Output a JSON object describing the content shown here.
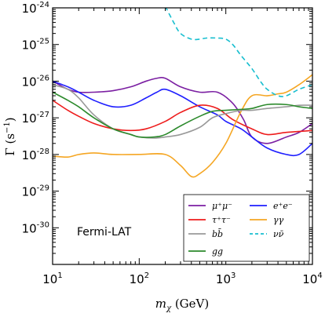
{
  "chart_data": {
    "type": "line",
    "xlabel": "m_χ (GeV)",
    "ylabel": "Γ (s⁻¹)",
    "xscale": "log",
    "yscale": "log",
    "xlim": [
      10,
      10000
    ],
    "ylim": [
      1e-31,
      1e-24
    ],
    "x_ticks": [
      {
        "value": 10,
        "base": "10",
        "exp": "1"
      },
      {
        "value": 100,
        "base": "10",
        "exp": "2"
      },
      {
        "value": 1000,
        "base": "10",
        "exp": "3"
      },
      {
        "value": 10000,
        "base": "10",
        "exp": "4"
      }
    ],
    "y_ticks": [
      {
        "value": 1e-30,
        "base": "10",
        "exp": "-30"
      },
      {
        "value": 1e-29,
        "base": "10",
        "exp": "-29"
      },
      {
        "value": 1e-28,
        "base": "10",
        "exp": "-28"
      },
      {
        "value": 1e-27,
        "base": "10",
        "exp": "-27"
      },
      {
        "value": 1e-26,
        "base": "10",
        "exp": "-26"
      },
      {
        "value": 1e-25,
        "base": "10",
        "exp": "-25"
      },
      {
        "value": 1e-24,
        "base": "10",
        "exp": "-24"
      }
    ],
    "annotation": "Fermi-LAT",
    "legend_position": "lower-right",
    "series": [
      {
        "name": "μ⁺μ⁻",
        "color": "#7b1fa2",
        "dash": "",
        "x": [
          10,
          15,
          20,
          30,
          50,
          80,
          120,
          160,
          200,
          300,
          500,
          800,
          1200,
          1600,
          2000,
          3000,
          5000,
          7000,
          10000
        ],
        "y": [
          1e-26,
          6e-27,
          5e-27,
          5e-27,
          5.5e-27,
          7e-27,
          1e-26,
          1.2e-26,
          1.2e-26,
          7e-27,
          5e-27,
          5e-27,
          2.5e-27,
          9e-28,
          3e-28,
          2e-28,
          3e-28,
          4e-28,
          7e-28
        ]
      },
      {
        "name": "e⁺e⁻",
        "color": "#1f1fff",
        "dash": "",
        "x": [
          10,
          15,
          20,
          30,
          50,
          80,
          120,
          160,
          200,
          300,
          500,
          800,
          1000,
          1500,
          2000,
          3000,
          5000,
          7000,
          10000
        ],
        "y": [
          1e-26,
          7e-27,
          5e-27,
          3e-27,
          2e-27,
          2.2e-27,
          3.5e-27,
          5e-27,
          6e-27,
          4e-27,
          2e-27,
          1.2e-27,
          8e-28,
          5e-28,
          3e-28,
          1.5e-28,
          1e-28,
          1e-28,
          2e-28
        ]
      },
      {
        "name": "τ⁺τ⁻",
        "color": "#ee1c1c",
        "dash": "",
        "x": [
          10,
          15,
          20,
          30,
          50,
          80,
          120,
          200,
          300,
          500,
          800,
          1200,
          2000,
          3000,
          5000,
          10000
        ],
        "y": [
          3e-27,
          1.6e-27,
          1.1e-27,
          7e-28,
          5e-28,
          4.5e-28,
          5e-28,
          8e-28,
          1.4e-27,
          2.2e-27,
          1.8e-27,
          9e-28,
          5e-28,
          3.5e-28,
          4e-28,
          4.5e-28
        ]
      },
      {
        "name": "γγ",
        "color": "#f5a623",
        "dash": "",
        "x": [
          10,
          15,
          20,
          30,
          50,
          100,
          200,
          300,
          400,
          500,
          700,
          1000,
          1500,
          2000,
          3000,
          4000,
          5000,
          7000,
          10000
        ],
        "y": [
          9e-29,
          8.5e-29,
          1e-28,
          1.1e-28,
          1e-28,
          1e-28,
          1e-28,
          5e-29,
          2.5e-29,
          3e-29,
          6e-29,
          2e-28,
          1.5e-27,
          4e-27,
          4e-27,
          4.5e-27,
          5e-27,
          8e-27,
          1.5e-26
        ]
      },
      {
        "name": "bb̄",
        "color": "#999999",
        "dash": "",
        "x": [
          10,
          15,
          20,
          30,
          50,
          80,
          100,
          150,
          200,
          300,
          500,
          700,
          1000,
          1500,
          2000,
          3000,
          5000,
          7000,
          10000
        ],
        "y": [
          8e-27,
          6e-27,
          3.5e-27,
          1.2e-27,
          5e-28,
          3.5e-28,
          3e-28,
          2.8e-28,
          3e-28,
          3.5e-28,
          5.5e-28,
          1e-27,
          1.3e-27,
          1.6e-27,
          1.6e-27,
          1.8e-27,
          2e-27,
          2.2e-27,
          2.2e-27
        ]
      },
      {
        "name": "νν̄",
        "color": "#17becf",
        "dash": "6,4",
        "x": [
          200,
          250,
          300,
          400,
          500,
          600,
          800,
          1000,
          1200,
          1500,
          2000,
          2500,
          3000,
          4000,
          5000,
          7000,
          10000
        ],
        "y": [
          1.1e-24,
          4e-25,
          2e-25,
          1.4e-25,
          1.4e-25,
          1.5e-25,
          1.5e-25,
          1.4e-25,
          1e-25,
          5e-26,
          2.2e-26,
          1e-26,
          6e-27,
          4e-27,
          4e-27,
          6e-27,
          8e-27
        ]
      },
      {
        "name": "gg",
        "color": "#2c8a2c",
        "dash": "",
        "x": [
          10,
          15,
          20,
          30,
          50,
          80,
          100,
          150,
          200,
          300,
          500,
          700,
          1000,
          1500,
          2000,
          3000,
          5000,
          7000,
          10000
        ],
        "y": [
          5e-27,
          3e-27,
          2e-27,
          1e-27,
          5e-28,
          3.5e-28,
          3e-28,
          3e-28,
          3.5e-28,
          6e-28,
          1.1e-27,
          1.5e-27,
          1.6e-27,
          1.7e-27,
          1.8e-27,
          2.3e-27,
          2.3e-27,
          2e-27,
          1.8e-27
        ]
      }
    ],
    "legend": [
      {
        "label": "μ⁺μ⁻",
        "color": "#7b1fa2",
        "dash": "",
        "col": 0,
        "row": 0
      },
      {
        "label": "τ⁺τ⁻",
        "color": "#ee1c1c",
        "dash": "",
        "col": 0,
        "row": 1
      },
      {
        "label": "bb̄",
        "color": "#999999",
        "dash": "",
        "col": 0,
        "row": 2
      },
      {
        "label": "gg",
        "color": "#2c8a2c",
        "dash": "",
        "col": 0,
        "row": 3
      },
      {
        "label": "e⁺e⁻",
        "color": "#1f1fff",
        "dash": "",
        "col": 1,
        "row": 0
      },
      {
        "label": "γγ",
        "color": "#f5a623",
        "dash": "",
        "col": 1,
        "row": 1
      },
      {
        "label": "νν̄",
        "color": "#17becf",
        "dash": "6,4",
        "col": 1,
        "row": 2
      }
    ]
  }
}
